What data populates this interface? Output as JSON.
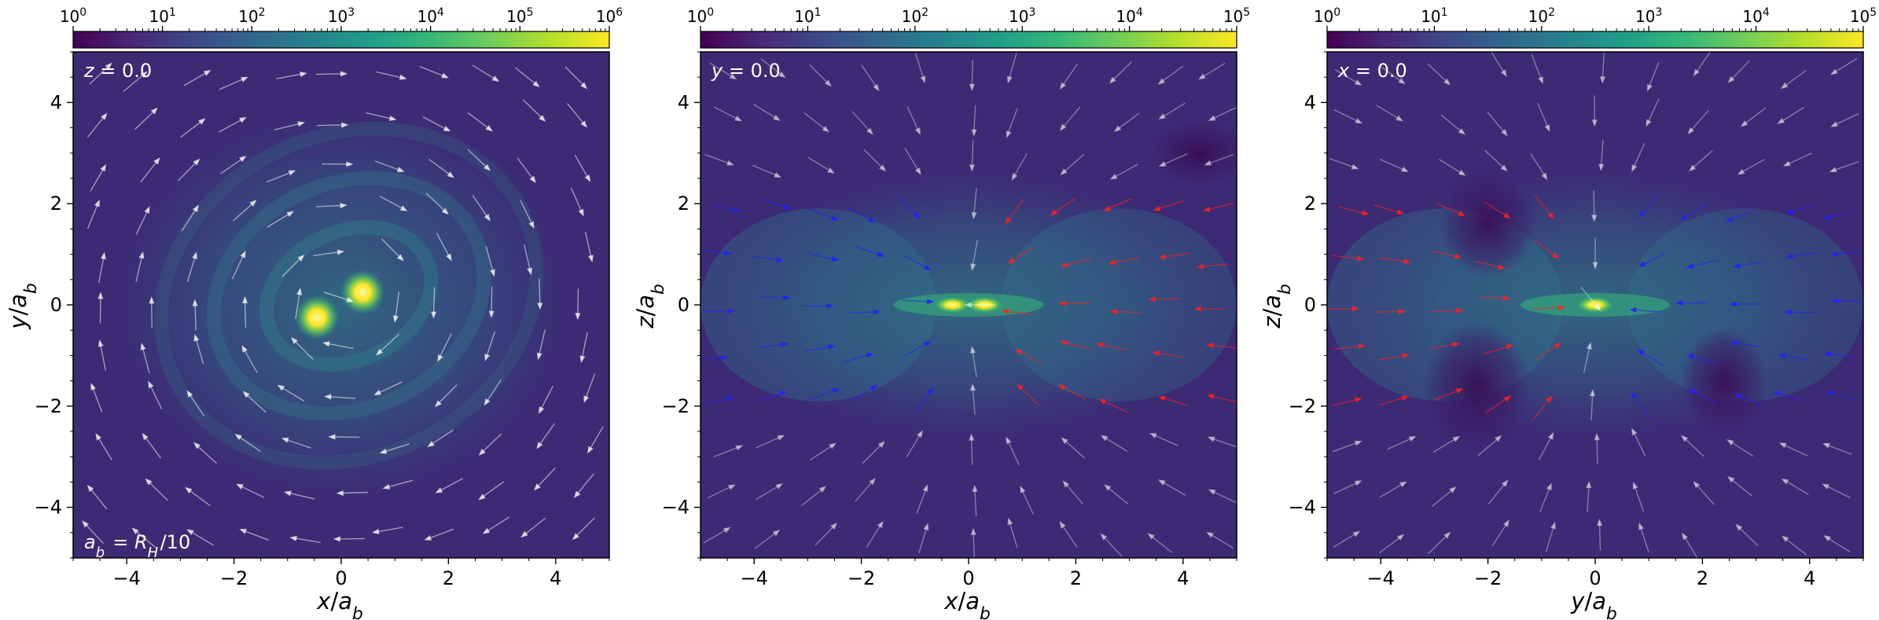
{
  "colors": {
    "colormap": [
      "#440154",
      "#482878",
      "#3e4989",
      "#31688e",
      "#26828e",
      "#1f9e89",
      "#35b779",
      "#6ece58",
      "#b5de2b",
      "#fde725"
    ],
    "background": "#3c2a74",
    "streamline_neutral": "#ffffff",
    "streamline_positive": "#ff2020",
    "streamline_negative": "#2020ff"
  },
  "chart_data": [
    {
      "type": "heatmap",
      "subplot": "left",
      "xlabel": "x/a_b",
      "ylabel": "y/a_b",
      "xlim": [
        -5,
        5
      ],
      "ylim": [
        -5,
        5
      ],
      "xticks": [
        "−4",
        "−2",
        "0",
        "2",
        "4"
      ],
      "xtick_values": [
        -4,
        -2,
        0,
        2,
        4
      ],
      "yticks": [
        "−4",
        "−2",
        "0",
        "2",
        "4"
      ],
      "ytick_values": [
        -4,
        -2,
        0,
        2,
        4
      ],
      "slice_label": "z = 0.0",
      "annotation": "a_b = R_H/10",
      "colorbar": {
        "scale": "log",
        "range": [
          1,
          1000000
        ],
        "tick_labels": [
          "10^0",
          "10^1",
          "10^2",
          "10^3",
          "10^4",
          "10^5",
          "10^6"
        ]
      },
      "features": {
        "bright_spots": [
          [
            -0.45,
            -0.25
          ],
          [
            0.4,
            0.25
          ]
        ],
        "flow": "clockwise spiral around origin"
      }
    },
    {
      "type": "heatmap",
      "subplot": "middle",
      "xlabel": "x/a_b",
      "ylabel": "z/a_b",
      "xlim": [
        -5,
        5
      ],
      "ylim": [
        -5,
        5
      ],
      "xticks": [
        "−4",
        "−2",
        "0",
        "2",
        "4"
      ],
      "xtick_values": [
        -4,
        -2,
        0,
        2,
        4
      ],
      "yticks": [
        "−4",
        "−2",
        "0",
        "2",
        "4"
      ],
      "ytick_values": [
        -4,
        -2,
        0,
        2,
        4
      ],
      "slice_label": "y = 0.0",
      "colorbar": {
        "scale": "log",
        "range": [
          1,
          100000
        ],
        "tick_labels": [
          "10^0",
          "10^1",
          "10^2",
          "10^3",
          "10^4",
          "10^5"
        ]
      },
      "features": {
        "bright_spots": [
          [
            -0.3,
            0.0
          ],
          [
            0.3,
            0.0
          ]
        ],
        "flow": "blue lobe at x<0, red lobe at x>0"
      }
    },
    {
      "type": "heatmap",
      "subplot": "right",
      "xlabel": "y/a_b",
      "ylabel": "z/a_b",
      "xlim": [
        -5,
        5
      ],
      "ylim": [
        -5,
        5
      ],
      "xticks": [
        "−4",
        "−2",
        "0",
        "2",
        "4"
      ],
      "xtick_values": [
        -4,
        -2,
        0,
        2,
        4
      ],
      "yticks": [
        "−4",
        "−2",
        "0",
        "2",
        "4"
      ],
      "ytick_values": [
        -4,
        -2,
        0,
        2,
        4
      ],
      "slice_label": "x = 0.0",
      "colorbar": {
        "scale": "log",
        "range": [
          1,
          100000
        ],
        "tick_labels": [
          "10^0",
          "10^1",
          "10^2",
          "10^3",
          "10^4",
          "10^5"
        ]
      },
      "features": {
        "bright_spots": [
          [
            0.0,
            0.0
          ]
        ],
        "flow": "red lobe at y<0, blue lobe at y>0"
      }
    }
  ]
}
